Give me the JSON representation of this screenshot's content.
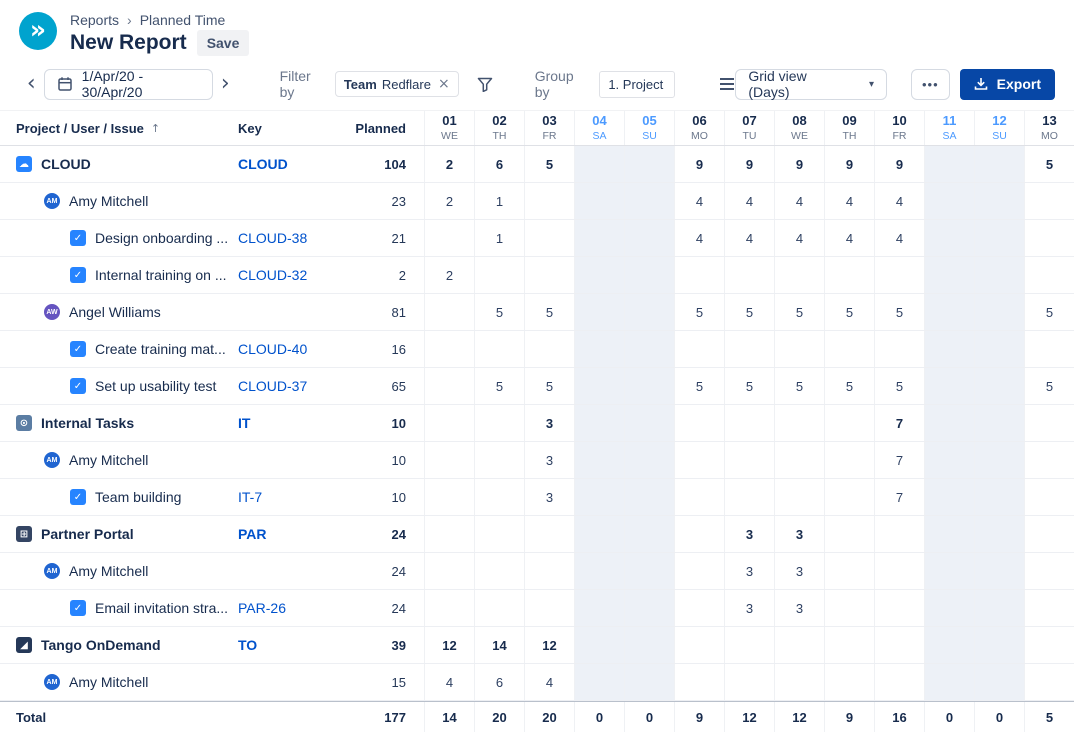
{
  "colors": {
    "logo_bg": "#00A3CE",
    "key_blue": "#0052CC",
    "export_bg": "#0747A6",
    "weekend_bg": "#EDF1F7",
    "weekend_text": "#4C9AFF"
  },
  "header": {
    "breadcrumb": [
      "Reports",
      "Planned Time"
    ],
    "separator": "›",
    "title": "New Report",
    "save_label": "Save",
    "logo_glyph": "»"
  },
  "toolbar": {
    "prev_icon": "‹",
    "next_icon": "›",
    "date_range": "1/Apr/20 - 30/Apr/20",
    "filter_by_label": "Filter by",
    "filter_chip": {
      "prefix": "Team",
      "value": "Redflare",
      "remove": "×"
    },
    "group_by_label": "Group by",
    "group_by_value": "1. Project",
    "view_selector": "Grid view (Days)",
    "caret": "▾",
    "more_label": "•••",
    "export_label": "Export"
  },
  "table": {
    "columns": {
      "name": "Project / User / Issue",
      "key": "Key",
      "planned": "Planned"
    },
    "sort_icon": "↑",
    "dates": [
      {
        "num": "01",
        "day": "WE",
        "weekend": false
      },
      {
        "num": "02",
        "day": "TH",
        "weekend": false
      },
      {
        "num": "03",
        "day": "FR",
        "weekend": false
      },
      {
        "num": "04",
        "day": "SA",
        "weekend": true
      },
      {
        "num": "05",
        "day": "SU",
        "weekend": true
      },
      {
        "num": "06",
        "day": "MO",
        "weekend": false
      },
      {
        "num": "07",
        "day": "TU",
        "weekend": false
      },
      {
        "num": "08",
        "day": "WE",
        "weekend": false
      },
      {
        "num": "09",
        "day": "TH",
        "weekend": false
      },
      {
        "num": "10",
        "day": "FR",
        "weekend": false
      },
      {
        "num": "11",
        "day": "SA",
        "weekend": true
      },
      {
        "num": "12",
        "day": "SU",
        "weekend": true
      },
      {
        "num": "13",
        "day": "MO",
        "weekend": false
      }
    ],
    "rows": [
      {
        "type": "project",
        "name": "CLOUD",
        "key": "CLOUD",
        "planned": "104",
        "icon_bg": "#2684FF",
        "icon_glyph": "☁",
        "values": [
          "2",
          "6",
          "5",
          "",
          "",
          "9",
          "9",
          "9",
          "9",
          "9",
          "",
          "",
          "5"
        ]
      },
      {
        "type": "user",
        "name": "Amy Mitchell",
        "initials": "AM",
        "avatar_bg": "#2065D1",
        "key": "",
        "planned": "23",
        "values": [
          "2",
          "1",
          "",
          "",
          "",
          "4",
          "4",
          "4",
          "4",
          "4",
          "",
          "",
          ""
        ]
      },
      {
        "type": "issue",
        "name": "Design onboarding ...",
        "key": "CLOUD-38",
        "planned": "21",
        "values": [
          "",
          "1",
          "",
          "",
          "",
          "4",
          "4",
          "4",
          "4",
          "4",
          "",
          "",
          ""
        ]
      },
      {
        "type": "issue",
        "name": "Internal training on ...",
        "key": "CLOUD-32",
        "planned": "2",
        "values": [
          "2",
          "",
          "",
          "",
          "",
          "",
          "",
          "",
          "",
          "",
          "",
          "",
          ""
        ]
      },
      {
        "type": "user",
        "name": "Angel Williams",
        "initials": "AW",
        "avatar_bg": "#6554C0",
        "key": "",
        "planned": "81",
        "values": [
          "",
          "5",
          "5",
          "",
          "",
          "5",
          "5",
          "5",
          "5",
          "5",
          "",
          "",
          "5"
        ]
      },
      {
        "type": "issue",
        "name": "Create training mat...",
        "key": "CLOUD-40",
        "planned": "16",
        "values": [
          "",
          "",
          "",
          "",
          "",
          "",
          "",
          "",
          "",
          "",
          "",
          "",
          ""
        ]
      },
      {
        "type": "issue",
        "name": "Set up usability test",
        "key": "CLOUD-37",
        "planned": "65",
        "values": [
          "",
          "5",
          "5",
          "",
          "",
          "5",
          "5",
          "5",
          "5",
          "5",
          "",
          "",
          "5"
        ]
      },
      {
        "type": "project",
        "name": "Internal Tasks",
        "key": "IT",
        "planned": "10",
        "icon_bg": "#5B7DA3",
        "icon_glyph": "⊙",
        "values": [
          "",
          "",
          "3",
          "",
          "",
          "",
          "",
          "",
          "",
          "7",
          "",
          "",
          ""
        ]
      },
      {
        "type": "user",
        "name": "Amy Mitchell",
        "initials": "AM",
        "avatar_bg": "#2065D1",
        "key": "",
        "planned": "10",
        "values": [
          "",
          "",
          "3",
          "",
          "",
          "",
          "",
          "",
          "",
          "7",
          "",
          "",
          ""
        ]
      },
      {
        "type": "issue",
        "name": "Team building",
        "key": "IT-7",
        "planned": "10",
        "values": [
          "",
          "",
          "3",
          "",
          "",
          "",
          "",
          "",
          "",
          "7",
          "",
          "",
          ""
        ]
      },
      {
        "type": "project",
        "name": "Partner Portal",
        "key": "PAR",
        "planned": "24",
        "icon_bg": "#344563",
        "icon_glyph": "⊞",
        "values": [
          "",
          "",
          "",
          "",
          "",
          "",
          "3",
          "3",
          "",
          "",
          "",
          "",
          ""
        ]
      },
      {
        "type": "user",
        "name": "Amy Mitchell",
        "initials": "AM",
        "avatar_bg": "#2065D1",
        "key": "",
        "planned": "24",
        "values": [
          "",
          "",
          "",
          "",
          "",
          "",
          "3",
          "3",
          "",
          "",
          "",
          "",
          ""
        ]
      },
      {
        "type": "issue",
        "name": "Email invitation stra...",
        "key": "PAR-26",
        "planned": "24",
        "values": [
          "",
          "",
          "",
          "",
          "",
          "",
          "3",
          "3",
          "",
          "",
          "",
          "",
          ""
        ]
      },
      {
        "type": "project",
        "name": "Tango OnDemand",
        "key": "TO",
        "planned": "39",
        "icon_bg": "#253858",
        "icon_glyph": "◢",
        "values": [
          "12",
          "14",
          "12",
          "",
          "",
          "",
          "",
          "",
          "",
          "",
          "",
          "",
          ""
        ]
      },
      {
        "type": "user",
        "name": "Amy Mitchell",
        "initials": "AM",
        "avatar_bg": "#2065D1",
        "key": "",
        "planned": "15",
        "values": [
          "4",
          "6",
          "4",
          "",
          "",
          "",
          "",
          "",
          "",
          "",
          "",
          "",
          ""
        ]
      }
    ],
    "total": {
      "label": "Total",
      "planned": "177",
      "values": [
        "14",
        "20",
        "20",
        "0",
        "0",
        "9",
        "12",
        "12",
        "9",
        "16",
        "0",
        "0",
        "5"
      ]
    }
  }
}
